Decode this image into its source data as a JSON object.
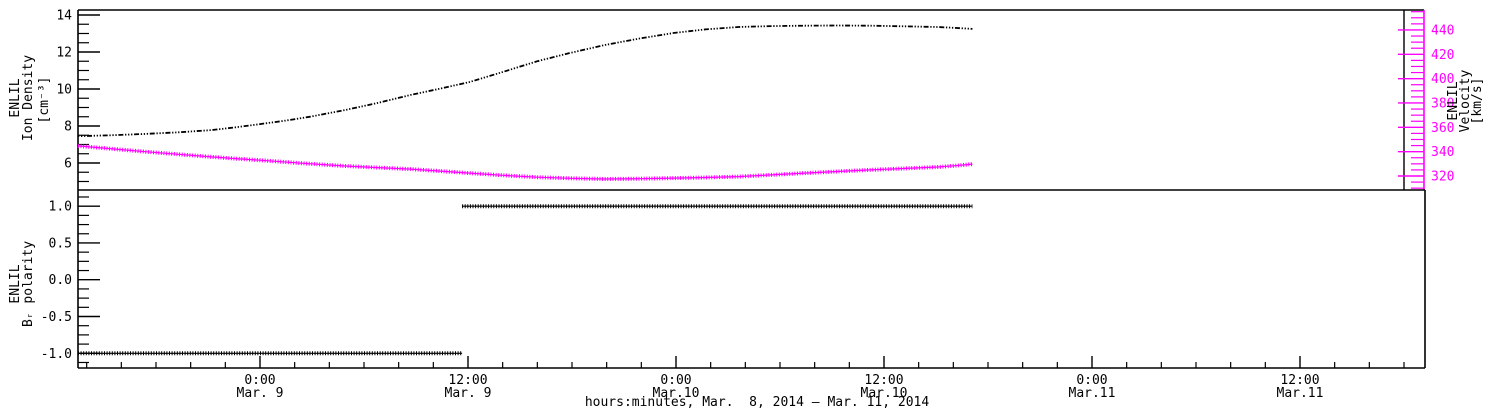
{
  "colors": {
    "axis": "#000000",
    "background": "#ffffff",
    "density_series": "#000000",
    "velocity_series": "#ff00ff",
    "velocity_axis": "#ff00ff"
  },
  "x_axis": {
    "title": "hours:minutes, Mar.  8, 2014 – Mar. 11, 2014",
    "domain_hours": [
      13.5,
      91.2
    ],
    "top_panel_right_hours": 90.0,
    "minor_step_hours": 2,
    "minor_range_hours": [
      14,
      90
    ],
    "majors": [
      {
        "hours": 24,
        "time": "0:00",
        "date": "Mar. 9"
      },
      {
        "hours": 36,
        "time": "12:00",
        "date": "Mar. 9"
      },
      {
        "hours": 48,
        "time": "0:00",
        "date": "Mar.10"
      },
      {
        "hours": 60,
        "time": "12:00",
        "date": "Mar.10"
      },
      {
        "hours": 72,
        "time": "0:00",
        "date": "Mar.11"
      },
      {
        "hours": 84,
        "time": "12:00",
        "date": "Mar.11"
      }
    ]
  },
  "chart_data": [
    {
      "type": "line",
      "panel": "top",
      "y_left": {
        "label_lines": [
          "ENLIL",
          "Ion Density",
          "[cm⁻³]"
        ],
        "range": [
          4.54,
          14.27
        ],
        "majors": [
          6,
          8,
          10,
          12,
          14
        ],
        "major_labels": [
          "6",
          "8",
          "10",
          "12",
          "14"
        ],
        "minor_step": 0.5,
        "minor_range": [
          5.0,
          14.0
        ],
        "color": "#000000"
      },
      "y_right": {
        "label_lines": [
          "ENLIL",
          "Velocity",
          "[km/s]"
        ],
        "range": [
          308.5,
          456.4
        ],
        "majors": [
          320,
          340,
          360,
          380,
          400,
          420,
          440
        ],
        "major_labels": [
          "320",
          "340",
          "360",
          "380",
          "400",
          "420",
          "440"
        ],
        "minor_step": 5,
        "minor_range": [
          310,
          455
        ],
        "color": "#ff00ff"
      },
      "series": [
        {
          "name": "ion-density",
          "axis": "left",
          "color": "#000000",
          "marker": "dot-dash",
          "points": [
            [
              13.5,
              7.45
            ],
            [
              15.5,
              7.5
            ],
            [
              17.4,
              7.57
            ],
            [
              19.3,
              7.66
            ],
            [
              21.2,
              7.78
            ],
            [
              22.6,
              7.93
            ],
            [
              24.0,
              8.1
            ],
            [
              25.4,
              8.28
            ],
            [
              26.9,
              8.5
            ],
            [
              28.9,
              8.86
            ],
            [
              30.8,
              9.25
            ],
            [
              32.7,
              9.68
            ],
            [
              34.4,
              10.02
            ],
            [
              36.1,
              10.38
            ],
            [
              38.0,
              10.92
            ],
            [
              40.0,
              11.5
            ],
            [
              41.9,
              11.95
            ],
            [
              43.9,
              12.38
            ],
            [
              45.9,
              12.73
            ],
            [
              47.9,
              13.03
            ],
            [
              49.7,
              13.22
            ],
            [
              51.6,
              13.35
            ],
            [
              53.5,
              13.4
            ],
            [
              55.4,
              13.42
            ],
            [
              57.3,
              13.43
            ],
            [
              59.2,
              13.42
            ],
            [
              61.1,
              13.39
            ],
            [
              63.1,
              13.35
            ],
            [
              64.1,
              13.3
            ],
            [
              65.1,
              13.25
            ]
          ]
        },
        {
          "name": "velocity",
          "axis": "right",
          "color": "#ff00ff",
          "marker": "plus",
          "points": [
            [
              13.5,
              344.7
            ],
            [
              15.5,
              342.3
            ],
            [
              17.4,
              340.0
            ],
            [
              19.3,
              337.8
            ],
            [
              21.2,
              335.7
            ],
            [
              22.6,
              334.3
            ],
            [
              24.0,
              333.0
            ],
            [
              26.4,
              330.5
            ],
            [
              28.9,
              328.2
            ],
            [
              30.8,
              326.9
            ],
            [
              32.7,
              325.7
            ],
            [
              34.4,
              324.0
            ],
            [
              36.1,
              322.4
            ],
            [
              38.0,
              320.6
            ],
            [
              40.0,
              319.0
            ],
            [
              41.9,
              318.1
            ],
            [
              43.9,
              317.5
            ],
            [
              45.9,
              317.8
            ],
            [
              47.9,
              318.3
            ],
            [
              49.7,
              318.8
            ],
            [
              51.6,
              319.5
            ],
            [
              53.5,
              320.9
            ],
            [
              55.4,
              322.4
            ],
            [
              57.3,
              323.7
            ],
            [
              59.2,
              325.0
            ],
            [
              61.1,
              326.2
            ],
            [
              63.1,
              327.4
            ],
            [
              64.1,
              328.5
            ],
            [
              65.1,
              329.8
            ]
          ]
        }
      ]
    },
    {
      "type": "line",
      "panel": "bottom",
      "y_left": {
        "label_lines": [
          "ENLIL",
          "Bᵣ polarity"
        ],
        "range": [
          -1.2,
          1.22
        ],
        "majors": [
          -1.0,
          -0.5,
          0.0,
          0.5,
          1.0
        ],
        "major_labels": [
          "-1.0",
          "-0.5",
          "0.0",
          "0.5",
          "1.0"
        ],
        "minor_step": 0.125,
        "minor_range": [
          -1.125,
          1.125
        ],
        "color": "#000000"
      },
      "series": [
        {
          "name": "br-polarity-negative",
          "axis": "left",
          "color": "#000000",
          "marker": "plus",
          "points": [
            [
              13.5,
              -1
            ],
            [
              35.66,
              -1
            ]
          ]
        },
        {
          "name": "br-polarity-positive",
          "axis": "left",
          "color": "#000000",
          "marker": "plus",
          "points": [
            [
              35.66,
              1
            ],
            [
              65.1,
              1
            ]
          ]
        }
      ]
    }
  ]
}
